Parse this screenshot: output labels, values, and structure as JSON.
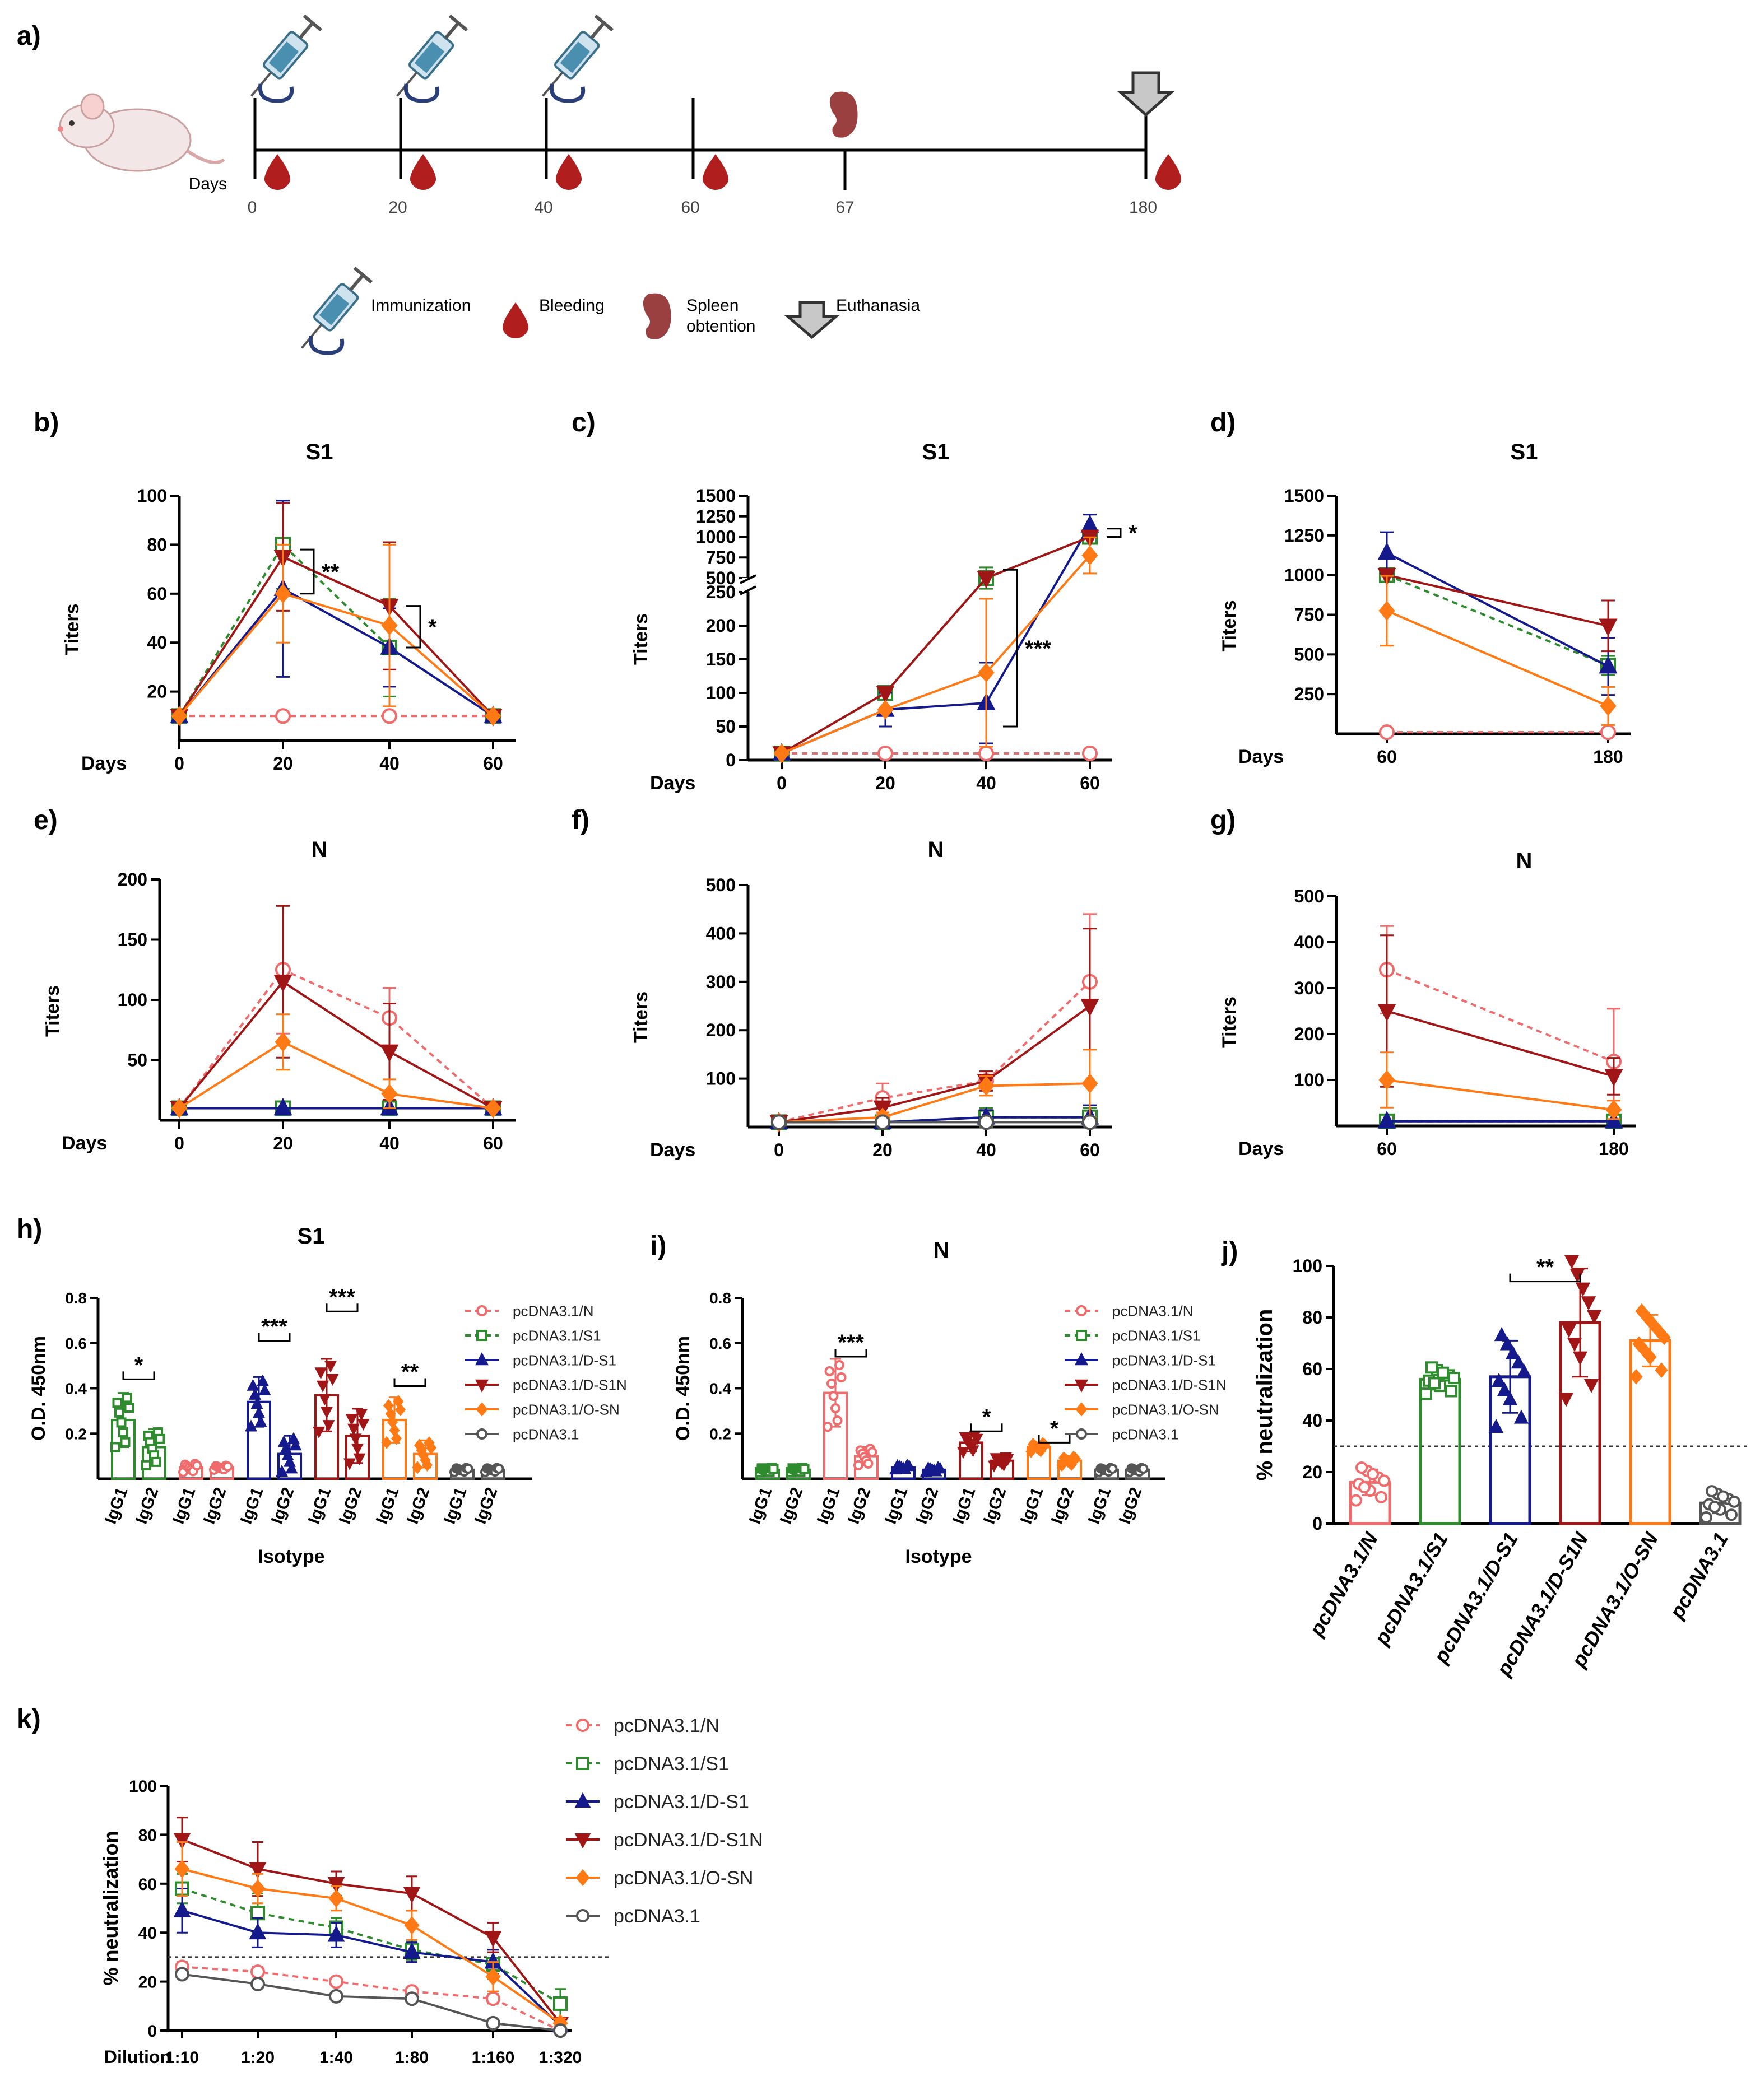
{
  "colors": {
    "N": "#f06b6b",
    "S1": "#2e8b2e",
    "DS1": "#14198c",
    "DS1N": "#a01515",
    "OSN": "#ff7a14",
    "pc": "#555555",
    "blood": "#b01e1e",
    "spleen": "#9b4040",
    "syringe": "#3a6f8a",
    "arrow_fill": "#c8c8c8"
  },
  "timeline": {
    "panel": "a)",
    "days_label": "Days",
    "days": [
      "0",
      "20",
      "40",
      "60",
      "67",
      "180"
    ],
    "legend": {
      "immunization": "Immunization",
      "bleeding": "Bleeding",
      "spleen_1": "Spleen",
      "spleen_2": "obtention",
      "euthanasia": "Euthanasia"
    }
  },
  "legend_entries": [
    "pcDNA3.1/N",
    "pcDNA3.1/S1",
    "pcDNA3.1/D-S1",
    "pcDNA3.1/D-S1N",
    "pcDNA3.1/O-SN",
    "pcDNA3.1"
  ],
  "chart_data": [
    {
      "id": "b",
      "panel": "b)",
      "type": "line",
      "title": "S1",
      "xlabel": "Days",
      "ylabel": "Titers",
      "x": [
        0,
        20,
        40,
        60
      ],
      "xticks": [
        "0",
        "20",
        "40",
        "60"
      ],
      "ylim": [
        0,
        100
      ],
      "yticks": [
        20,
        40,
        60,
        80,
        100
      ],
      "series": [
        {
          "name": "pcDNA3.1/N",
          "values": [
            10,
            10,
            10,
            10
          ]
        },
        {
          "name": "pcDNA3.1/S1",
          "values": [
            10,
            80,
            38,
            10
          ],
          "err": [
            0,
            18,
            20,
            0
          ]
        },
        {
          "name": "pcDNA3.1/D-S1",
          "values": [
            10,
            62,
            38,
            10
          ],
          "err": [
            0,
            36,
            16,
            0
          ]
        },
        {
          "name": "pcDNA3.1/D-S1N",
          "values": [
            10,
            75,
            55,
            10
          ],
          "err": [
            0,
            22,
            26,
            0
          ]
        },
        {
          "name": "pcDNA3.1/O-SN",
          "values": [
            10,
            60,
            47,
            10
          ],
          "err": [
            0,
            20,
            33,
            0
          ]
        }
      ],
      "significance": [
        "**",
        "*"
      ]
    },
    {
      "id": "c",
      "panel": "c)",
      "type": "line",
      "title": "S1",
      "xlabel": "Days",
      "ylabel": "Titers",
      "x": [
        0,
        20,
        40,
        60
      ],
      "xticks": [
        "0",
        "20",
        "40",
        "60"
      ],
      "ylim": [
        0,
        1500
      ],
      "yticks": [
        0,
        50,
        100,
        150,
        200,
        250,
        500,
        750,
        1000,
        1250,
        1500
      ],
      "axis_break": [
        250,
        500
      ],
      "series": [
        {
          "name": "pcDNA3.1/N",
          "values": [
            10,
            10,
            10,
            10
          ]
        },
        {
          "name": "pcDNA3.1/S1",
          "values": [
            10,
            100,
            500,
            1000
          ],
          "err": [
            0,
            0,
            130,
            0
          ]
        },
        {
          "name": "pcDNA3.1/D-S1",
          "values": [
            10,
            75,
            85,
            1140
          ],
          "err": [
            0,
            25,
            60,
            130
          ]
        },
        {
          "name": "pcDNA3.1/D-S1N",
          "values": [
            10,
            100,
            500,
            1000
          ],
          "err": [
            0,
            0,
            0,
            0
          ]
        },
        {
          "name": "pcDNA3.1/O-SN",
          "values": [
            10,
            75,
            130,
            775
          ],
          "err": [
            0,
            0,
            110,
            220
          ]
        }
      ],
      "significance": [
        "***",
        "*"
      ]
    },
    {
      "id": "d",
      "panel": "d)",
      "type": "line",
      "title": "S1",
      "xlabel": "Days",
      "ylabel": "Titers",
      "x": [
        60,
        180
      ],
      "xticks": [
        "60",
        "180"
      ],
      "ylim": [
        0,
        1500
      ],
      "yticks": [
        250,
        500,
        750,
        1000,
        1250,
        1500
      ],
      "series": [
        {
          "name": "pcDNA3.1/N",
          "values": [
            10,
            10
          ]
        },
        {
          "name": "pcDNA3.1/S1",
          "values": [
            1000,
            430
          ],
          "err": [
            0,
            60
          ]
        },
        {
          "name": "pcDNA3.1/D-S1",
          "values": [
            1140,
            425
          ],
          "err": [
            130,
            180
          ]
        },
        {
          "name": "pcDNA3.1/D-S1N",
          "values": [
            1000,
            680
          ],
          "err": [
            0,
            160
          ]
        },
        {
          "name": "pcDNA3.1/O-SN",
          "values": [
            775,
            175
          ],
          "err": [
            220,
            120
          ]
        }
      ]
    },
    {
      "id": "e",
      "panel": "e)",
      "type": "line",
      "title": "N",
      "xlabel": "Days",
      "ylabel": "Titers",
      "x": [
        0,
        20,
        40,
        60
      ],
      "xticks": [
        "0",
        "20",
        "40",
        "60"
      ],
      "ylim": [
        0,
        200
      ],
      "yticks": [
        50,
        100,
        150,
        200
      ],
      "series": [
        {
          "name": "pcDNA3.1/N",
          "values": [
            10,
            125,
            85,
            10
          ],
          "err": [
            0,
            53,
            25,
            0
          ]
        },
        {
          "name": "pcDNA3.1/S1",
          "values": [
            10,
            10,
            10,
            10
          ]
        },
        {
          "name": "pcDNA3.1/D-S1",
          "values": [
            10,
            10,
            10,
            10
          ]
        },
        {
          "name": "pcDNA3.1/D-S1N",
          "values": [
            10,
            115,
            57,
            10
          ],
          "err": [
            0,
            63,
            40,
            0
          ]
        },
        {
          "name": "pcDNA3.1/O-SN",
          "values": [
            10,
            65,
            22,
            10
          ],
          "err": [
            0,
            23,
            12,
            0
          ]
        }
      ]
    },
    {
      "id": "f",
      "panel": "f)",
      "type": "line",
      "title": "N",
      "xlabel": "Days",
      "ylabel": "Titers",
      "x": [
        0,
        20,
        40,
        60
      ],
      "xticks": [
        "0",
        "20",
        "40",
        "60"
      ],
      "ylim": [
        0,
        500
      ],
      "yticks": [
        100,
        200,
        300,
        400,
        500
      ],
      "series": [
        {
          "name": "pcDNA3.1/N",
          "values": [
            10,
            60,
            95,
            300
          ],
          "err": [
            0,
            30,
            20,
            140
          ]
        },
        {
          "name": "pcDNA3.1/S1",
          "values": [
            10,
            10,
            20,
            20
          ],
          "err": [
            0,
            0,
            20,
            20
          ]
        },
        {
          "name": "pcDNA3.1/D-S1",
          "values": [
            10,
            10,
            20,
            20
          ],
          "err": [
            0,
            0,
            15,
            25
          ]
        },
        {
          "name": "pcDNA3.1/D-S1N",
          "values": [
            10,
            40,
            95,
            250
          ],
          "err": [
            0,
            20,
            20,
            160
          ]
        },
        {
          "name": "pcDNA3.1/O-SN",
          "values": [
            10,
            20,
            85,
            90
          ],
          "err": [
            0,
            10,
            20,
            70
          ]
        },
        {
          "name": "pcDNA3.1",
          "values": [
            10,
            10,
            10,
            10
          ]
        }
      ]
    },
    {
      "id": "g",
      "panel": "g)",
      "type": "line",
      "title": "N",
      "xlabel": "Days",
      "ylabel": "Titers",
      "x": [
        60,
        180
      ],
      "xticks": [
        "60",
        "180"
      ],
      "ylim": [
        0,
        500
      ],
      "yticks": [
        100,
        200,
        300,
        400,
        500
      ],
      "series": [
        {
          "name": "pcDNA3.1/N",
          "values": [
            340,
            140
          ],
          "err": [
            95,
            115
          ]
        },
        {
          "name": "pcDNA3.1/S1",
          "values": [
            10,
            10
          ]
        },
        {
          "name": "pcDNA3.1/D-S1",
          "values": [
            10,
            10
          ]
        },
        {
          "name": "pcDNA3.1/D-S1N",
          "values": [
            250,
            108
          ],
          "err": [
            165,
            40
          ]
        },
        {
          "name": "pcDNA3.1/O-SN",
          "values": [
            100,
            35
          ],
          "err": [
            60,
            20
          ]
        }
      ]
    },
    {
      "id": "h",
      "panel": "h)",
      "type": "bar",
      "title": "S1",
      "xlabel": "Isotype",
      "ylabel": "O.D. 450nm",
      "categories": [
        "IgG1",
        "IgG2"
      ],
      "ylim": [
        0,
        0.8
      ],
      "yticks": [
        "0.2",
        "0.4",
        "0.6",
        "0.8"
      ],
      "series": [
        {
          "name": "pcDNA3.1/S1",
          "values": [
            0.26,
            0.14
          ],
          "err": [
            0.12,
            0.08
          ]
        },
        {
          "name": "pcDNA3.1/N",
          "values": [
            0.05,
            0.05
          ],
          "err": [
            0.02,
            0.01
          ]
        },
        {
          "name": "pcDNA3.1/D-S1",
          "values": [
            0.34,
            0.11
          ],
          "err": [
            0.11,
            0.08
          ]
        },
        {
          "name": "pcDNA3.1/D-S1N",
          "values": [
            0.37,
            0.19
          ],
          "err": [
            0.16,
            0.12
          ]
        },
        {
          "name": "pcDNA3.1/O-SN",
          "values": [
            0.26,
            0.11
          ],
          "err": [
            0.1,
            0.06
          ]
        },
        {
          "name": "pcDNA3.1",
          "values": [
            0.04,
            0.04
          ],
          "err": [
            0.01,
            0.01
          ]
        }
      ],
      "significance": [
        "*",
        "***",
        "***",
        "**"
      ]
    },
    {
      "id": "i",
      "panel": "i)",
      "type": "bar",
      "title": "N",
      "xlabel": "Isotype",
      "ylabel": "O.D. 450nm",
      "categories": [
        "IgG1",
        "IgG2"
      ],
      "ylim": [
        0,
        0.8
      ],
      "yticks": [
        "0.2",
        "0.4",
        "0.6",
        "0.8"
      ],
      "series": [
        {
          "name": "pcDNA3.1/S1",
          "values": [
            0.04,
            0.04
          ],
          "err": [
            0.01,
            0.01
          ]
        },
        {
          "name": "pcDNA3.1/N",
          "values": [
            0.38,
            0.1
          ],
          "err": [
            0.15,
            0.04
          ]
        },
        {
          "name": "pcDNA3.1/D-S1",
          "values": [
            0.05,
            0.04
          ],
          "err": [
            0.01,
            0.01
          ]
        },
        {
          "name": "pcDNA3.1/D-S1N",
          "values": [
            0.16,
            0.08
          ],
          "err": [
            0.04,
            0.02
          ]
        },
        {
          "name": "pcDNA3.1/O-SN",
          "values": [
            0.14,
            0.08
          ],
          "err": [
            0.02,
            0.02
          ]
        },
        {
          "name": "pcDNA3.1",
          "values": [
            0.04,
            0.04
          ],
          "err": [
            0.01,
            0.01
          ]
        }
      ],
      "significance": [
        "***",
        "*",
        "*"
      ]
    },
    {
      "id": "j",
      "panel": "j)",
      "type": "bar",
      "title": "",
      "xlabel": "",
      "ylabel": "% neutralization",
      "categories": [
        "pcDNA3.1/N",
        "pcDNA3.1/S1",
        "pcDNA3.1/D-S1",
        "pcDNA3.1/D-S1N",
        "pcDNA3.1/O-SN",
        "pcDNA3.1"
      ],
      "values": [
        16,
        56,
        57,
        78,
        71,
        8
      ],
      "err": [
        5,
        4,
        14,
        21,
        10,
        4
      ],
      "ylim": [
        0,
        100
      ],
      "yticks": [
        0,
        20,
        40,
        60,
        80,
        100
      ],
      "threshold": 30,
      "significance": [
        "**"
      ]
    },
    {
      "id": "k",
      "panel": "k)",
      "type": "line",
      "title": "",
      "xlabel": "Dilution",
      "ylabel": "% neutralization",
      "categories": [
        "1:10",
        "1:20",
        "1:40",
        "1:80",
        "1:160",
        "1:320"
      ],
      "ylim": [
        0,
        100
      ],
      "yticks": [
        0,
        20,
        40,
        60,
        80,
        100
      ],
      "threshold": 30,
      "series": [
        {
          "name": "pcDNA3.1/N",
          "values": [
            26,
            24,
            20,
            16,
            13,
            0
          ],
          "err": [
            2,
            2,
            1,
            1,
            2,
            1
          ]
        },
        {
          "name": "pcDNA3.1/S1",
          "values": [
            58,
            48,
            42,
            33,
            27,
            11
          ],
          "err": [
            6,
            8,
            4,
            4,
            6,
            6
          ]
        },
        {
          "name": "pcDNA3.1/D-S1",
          "values": [
            49,
            40,
            39,
            32,
            28,
            2
          ],
          "err": [
            9,
            6,
            5,
            4,
            5,
            2
          ]
        },
        {
          "name": "pcDNA3.1/D-S1N",
          "values": [
            78,
            66,
            60,
            56,
            38,
            3
          ],
          "err": [
            9,
            11,
            5,
            7,
            6,
            2
          ]
        },
        {
          "name": "pcDNA3.1/O-SN",
          "values": [
            66,
            58,
            54,
            43,
            22,
            3
          ],
          "err": [
            11,
            6,
            5,
            6,
            6,
            2
          ]
        },
        {
          "name": "pcDNA3.1",
          "values": [
            23,
            19,
            14,
            13,
            3,
            0
          ],
          "err": [
            1,
            1,
            1,
            1,
            1,
            1
          ]
        }
      ]
    }
  ]
}
